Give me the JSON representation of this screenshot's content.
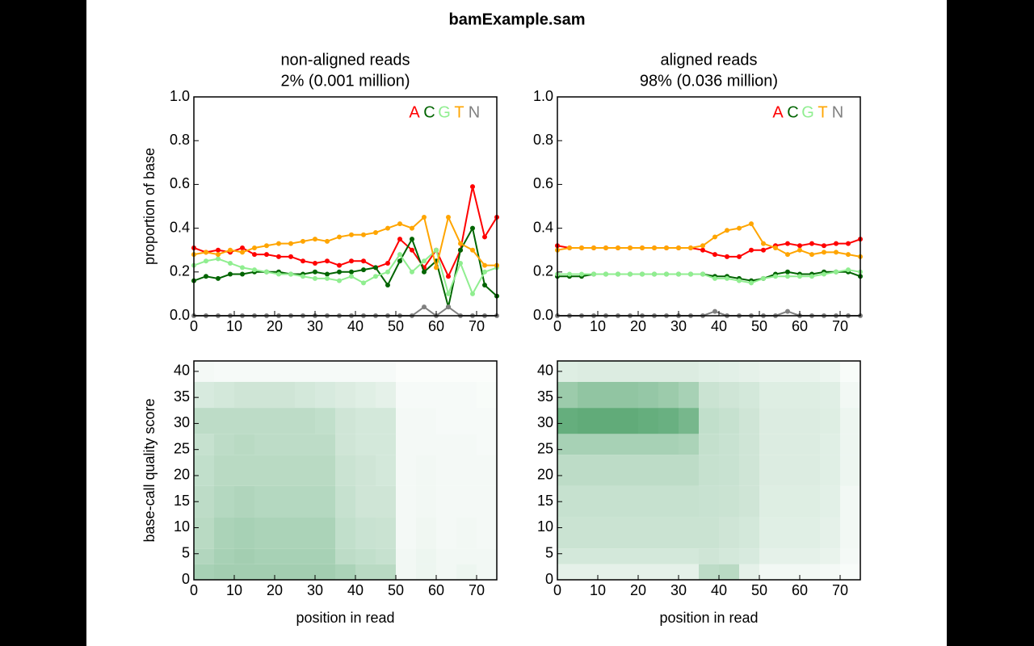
{
  "title": "bamExample.sam",
  "chart_data": [
    {
      "type": "line",
      "title": "non-aligned reads",
      "subtitle": "2% (0.001 million)",
      "ylabel": "proportion of base",
      "x": [
        0,
        3,
        6,
        9,
        12,
        15,
        18,
        21,
        24,
        27,
        30,
        33,
        36,
        39,
        42,
        45,
        48,
        51,
        54,
        57,
        60,
        63,
        66,
        69,
        72,
        75
      ],
      "series": [
        {
          "name": "A",
          "color": "#ff0000",
          "values": [
            0.31,
            0.29,
            0.3,
            0.29,
            0.31,
            0.28,
            0.28,
            0.27,
            0.27,
            0.25,
            0.24,
            0.25,
            0.23,
            0.25,
            0.25,
            0.22,
            0.24,
            0.35,
            0.3,
            0.22,
            0.3,
            0.18,
            0.3,
            0.59,
            0.36,
            0.45
          ]
        },
        {
          "name": "C",
          "color": "#006400",
          "values": [
            0.16,
            0.18,
            0.17,
            0.19,
            0.19,
            0.2,
            0.2,
            0.2,
            0.19,
            0.19,
            0.2,
            0.19,
            0.2,
            0.2,
            0.21,
            0.22,
            0.14,
            0.25,
            0.35,
            0.2,
            0.25,
            0.04,
            0.3,
            0.4,
            0.14,
            0.09
          ]
        },
        {
          "name": "G",
          "color": "#90ee90",
          "values": [
            0.23,
            0.25,
            0.26,
            0.24,
            0.22,
            0.21,
            0.2,
            0.19,
            0.19,
            0.18,
            0.17,
            0.17,
            0.16,
            0.18,
            0.15,
            0.18,
            0.2,
            0.28,
            0.2,
            0.25,
            0.3,
            0.1,
            0.24,
            0.1,
            0.2,
            0.22
          ]
        },
        {
          "name": "T",
          "color": "#ffa500",
          "values": [
            0.28,
            0.29,
            0.28,
            0.3,
            0.29,
            0.31,
            0.32,
            0.33,
            0.33,
            0.34,
            0.35,
            0.34,
            0.36,
            0.37,
            0.37,
            0.38,
            0.4,
            0.42,
            0.4,
            0.45,
            0.22,
            0.45,
            0.33,
            0.3,
            0.23,
            0.23
          ]
        },
        {
          "name": "N",
          "color": "#808080",
          "values": [
            0,
            0,
            0,
            0,
            0,
            0,
            0,
            0,
            0,
            0,
            0,
            0,
            0,
            0,
            0,
            0,
            0,
            0,
            0,
            0.04,
            0,
            0.04,
            0,
            0,
            0,
            0
          ]
        }
      ],
      "xlim": [
        0,
        75
      ],
      "ylim": [
        0,
        1
      ],
      "xticks": [
        0,
        10,
        20,
        30,
        40,
        50,
        60,
        70
      ],
      "yticks": [
        {
          "value": 0,
          "label": "0.0"
        },
        {
          "value": 0.2,
          "label": "0.2"
        },
        {
          "value": 0.4,
          "label": "0.4"
        },
        {
          "value": 0.6,
          "label": "0.6"
        },
        {
          "value": 0.8,
          "label": "0.8"
        },
        {
          "value": 1,
          "label": "1.0"
        }
      ]
    },
    {
      "type": "line",
      "title": "aligned reads",
      "subtitle": "98% (0.036 million)",
      "x": [
        0,
        3,
        6,
        9,
        12,
        15,
        18,
        21,
        24,
        27,
        30,
        33,
        36,
        39,
        42,
        45,
        48,
        51,
        54,
        57,
        60,
        63,
        66,
        69,
        72,
        75
      ],
      "series": [
        {
          "name": "A",
          "color": "#ff0000",
          "values": [
            0.32,
            0.31,
            0.31,
            0.31,
            0.31,
            0.31,
            0.31,
            0.31,
            0.31,
            0.31,
            0.31,
            0.31,
            0.3,
            0.28,
            0.27,
            0.27,
            0.3,
            0.3,
            0.32,
            0.33,
            0.32,
            0.33,
            0.32,
            0.33,
            0.33,
            0.35
          ]
        },
        {
          "name": "C",
          "color": "#006400",
          "values": [
            0.18,
            0.18,
            0.18,
            0.19,
            0.19,
            0.19,
            0.19,
            0.19,
            0.19,
            0.19,
            0.19,
            0.19,
            0.19,
            0.18,
            0.18,
            0.17,
            0.16,
            0.17,
            0.19,
            0.2,
            0.19,
            0.19,
            0.2,
            0.2,
            0.2,
            0.18
          ]
        },
        {
          "name": "G",
          "color": "#90ee90",
          "values": [
            0.19,
            0.19,
            0.19,
            0.19,
            0.19,
            0.19,
            0.19,
            0.19,
            0.19,
            0.19,
            0.19,
            0.19,
            0.19,
            0.17,
            0.17,
            0.16,
            0.15,
            0.17,
            0.18,
            0.18,
            0.18,
            0.18,
            0.19,
            0.2,
            0.21,
            0.2
          ]
        },
        {
          "name": "T",
          "color": "#ffa500",
          "values": [
            0.3,
            0.31,
            0.31,
            0.31,
            0.31,
            0.31,
            0.31,
            0.31,
            0.31,
            0.31,
            0.31,
            0.31,
            0.32,
            0.36,
            0.39,
            0.4,
            0.42,
            0.33,
            0.31,
            0.28,
            0.3,
            0.28,
            0.29,
            0.29,
            0.28,
            0.27
          ]
        },
        {
          "name": "N",
          "color": "#808080",
          "values": [
            0,
            0,
            0,
            0,
            0,
            0,
            0,
            0,
            0,
            0,
            0,
            0,
            0,
            0.02,
            0,
            0,
            0,
            0,
            0,
            0.02,
            0,
            0,
            0,
            0,
            0,
            0
          ]
        }
      ],
      "xlim": [
        0,
        75
      ],
      "ylim": [
        0,
        1
      ],
      "xticks": [
        0,
        10,
        20,
        30,
        40,
        50,
        60,
        70
      ],
      "yticks": [
        {
          "value": 0,
          "label": "0.0"
        },
        {
          "value": 0.2,
          "label": "0.2"
        },
        {
          "value": 0.4,
          "label": "0.4"
        },
        {
          "value": 0.6,
          "label": "0.6"
        },
        {
          "value": 0.8,
          "label": "0.8"
        },
        {
          "value": 1,
          "label": "1.0"
        }
      ]
    },
    {
      "type": "heatmap",
      "xlabel": "position in read",
      "ylabel": "base-call quality score",
      "color": "#238b45",
      "x_bins": [
        0,
        5,
        10,
        15,
        20,
        25,
        30,
        35,
        40,
        45,
        50,
        55,
        60,
        65,
        70,
        75
      ],
      "y_bins": [
        0,
        3,
        6,
        12,
        18,
        24,
        28,
        33,
        38,
        42
      ],
      "values": [
        [
          0.4,
          0.42,
          0.42,
          0.42,
          0.42,
          0.42,
          0.42,
          0.38,
          0.32,
          0.32,
          0.06,
          0.08,
          0.06,
          0.08,
          0.06
        ],
        [
          0.35,
          0.4,
          0.42,
          0.4,
          0.4,
          0.4,
          0.4,
          0.3,
          0.28,
          0.26,
          0.06,
          0.08,
          0.06,
          0.06,
          0.06
        ],
        [
          0.32,
          0.38,
          0.4,
          0.38,
          0.38,
          0.38,
          0.38,
          0.28,
          0.25,
          0.24,
          0.05,
          0.07,
          0.05,
          0.06,
          0.05
        ],
        [
          0.3,
          0.34,
          0.36,
          0.34,
          0.34,
          0.34,
          0.34,
          0.26,
          0.22,
          0.22,
          0.05,
          0.06,
          0.05,
          0.05,
          0.05
        ],
        [
          0.28,
          0.32,
          0.32,
          0.32,
          0.32,
          0.32,
          0.32,
          0.24,
          0.22,
          0.2,
          0.05,
          0.06,
          0.05,
          0.05,
          0.05
        ],
        [
          0.26,
          0.3,
          0.32,
          0.3,
          0.3,
          0.3,
          0.3,
          0.22,
          0.2,
          0.2,
          0.05,
          0.05,
          0.05,
          0.05,
          0.04
        ],
        [
          0.3,
          0.3,
          0.3,
          0.3,
          0.3,
          0.3,
          0.28,
          0.22,
          0.2,
          0.2,
          0.05,
          0.05,
          0.04,
          0.04,
          0.04
        ],
        [
          0.18,
          0.2,
          0.22,
          0.22,
          0.22,
          0.2,
          0.18,
          0.16,
          0.14,
          0.12,
          0.04,
          0.04,
          0.04,
          0.04,
          0.03
        ],
        [
          0.05,
          0.04,
          0.04,
          0.04,
          0.04,
          0.04,
          0.04,
          0.04,
          0.04,
          0.04,
          0.02,
          0.02,
          0.02,
          0.02,
          0.02
        ]
      ],
      "xlim": [
        0,
        75
      ],
      "ylim": [
        0,
        42
      ],
      "xticks": [
        0,
        10,
        20,
        30,
        40,
        50,
        60,
        70
      ],
      "yticks": [
        0,
        5,
        10,
        15,
        20,
        25,
        30,
        35,
        40
      ]
    },
    {
      "type": "heatmap",
      "xlabel": "position in read",
      "color": "#238b45",
      "x_bins": [
        0,
        5,
        10,
        15,
        20,
        25,
        30,
        35,
        40,
        45,
        50,
        55,
        60,
        65,
        70,
        75
      ],
      "y_bins": [
        0,
        3,
        6,
        12,
        18,
        24,
        28,
        33,
        38,
        42
      ],
      "values": [
        [
          0.12,
          0.12,
          0.12,
          0.12,
          0.12,
          0.12,
          0.12,
          0.3,
          0.32,
          0.12,
          0.06,
          0.06,
          0.06,
          0.05,
          0.03
        ],
        [
          0.2,
          0.2,
          0.2,
          0.2,
          0.2,
          0.2,
          0.2,
          0.22,
          0.2,
          0.18,
          0.12,
          0.12,
          0.12,
          0.1,
          0.05
        ],
        [
          0.24,
          0.24,
          0.24,
          0.24,
          0.24,
          0.24,
          0.24,
          0.24,
          0.22,
          0.2,
          0.14,
          0.14,
          0.14,
          0.12,
          0.06
        ],
        [
          0.26,
          0.26,
          0.26,
          0.26,
          0.26,
          0.26,
          0.26,
          0.25,
          0.24,
          0.22,
          0.15,
          0.15,
          0.15,
          0.13,
          0.06
        ],
        [
          0.3,
          0.3,
          0.3,
          0.3,
          0.3,
          0.3,
          0.3,
          0.26,
          0.25,
          0.22,
          0.16,
          0.16,
          0.16,
          0.14,
          0.08
        ],
        [
          0.4,
          0.4,
          0.4,
          0.4,
          0.4,
          0.4,
          0.38,
          0.27,
          0.25,
          0.22,
          0.16,
          0.16,
          0.16,
          0.14,
          0.08
        ],
        [
          0.7,
          0.72,
          0.72,
          0.72,
          0.7,
          0.68,
          0.62,
          0.28,
          0.26,
          0.22,
          0.16,
          0.16,
          0.16,
          0.15,
          0.08
        ],
        [
          0.45,
          0.5,
          0.5,
          0.5,
          0.48,
          0.45,
          0.4,
          0.24,
          0.22,
          0.2,
          0.15,
          0.15,
          0.15,
          0.14,
          0.06
        ],
        [
          0.15,
          0.16,
          0.16,
          0.16,
          0.16,
          0.16,
          0.16,
          0.14,
          0.13,
          0.12,
          0.1,
          0.1,
          0.1,
          0.08,
          0.03
        ]
      ],
      "xlim": [
        0,
        75
      ],
      "ylim": [
        0,
        42
      ],
      "xticks": [
        0,
        10,
        20,
        30,
        40,
        50,
        60,
        70
      ],
      "yticks": [
        0,
        5,
        10,
        15,
        20,
        25,
        30,
        35,
        40
      ]
    }
  ]
}
